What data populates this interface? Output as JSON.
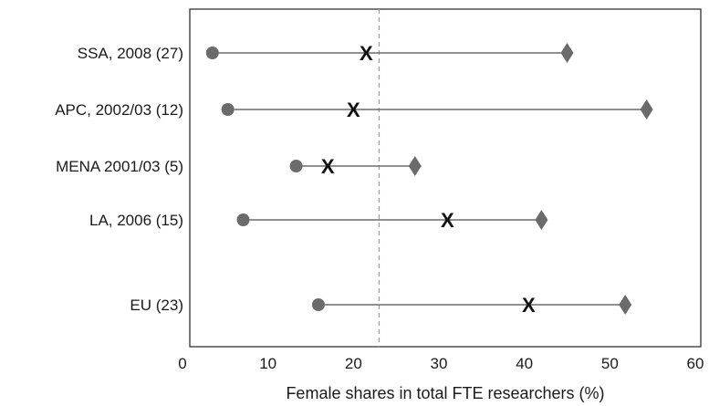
{
  "chart_data": {
    "type": "range-dot",
    "title": "",
    "xlabel": "Female shares in total FTE researchers (%)",
    "ylabel": "",
    "xlim": [
      0,
      60
    ],
    "xticks": [
      0,
      10,
      20,
      30,
      40,
      50,
      60
    ],
    "reference_line": {
      "x": 23,
      "style": "dashed"
    },
    "marker_legend": {
      "min": "circle",
      "average": "X",
      "max": "diamond"
    },
    "colors": {
      "range": "#6b6b6b",
      "average": "#111111",
      "reference": "#999999"
    },
    "rows": [
      {
        "label": "SSA, 2008 (27)",
        "min": 3.5,
        "avg": 21.5,
        "avg_symbol": "X",
        "max": 45
      },
      {
        "label": "APC, 2002/03 (12)",
        "min": 5.3,
        "avg": 20,
        "avg_symbol": "X",
        "max": 54.3
      },
      {
        "label": "MENA 2001/03 (5)",
        "min": 13.3,
        "avg": 17,
        "avg_symbol": "X",
        "max": 27.2
      },
      {
        "label": "LA, 2006 (15)",
        "min": 7.1,
        "avg": 31,
        "avg_symbol": "X",
        "max": 42
      },
      {
        "label": "EU (23)",
        "min": 15.9,
        "avg": 40.5,
        "avg_symbol": "X",
        "max": 51.8
      }
    ]
  }
}
